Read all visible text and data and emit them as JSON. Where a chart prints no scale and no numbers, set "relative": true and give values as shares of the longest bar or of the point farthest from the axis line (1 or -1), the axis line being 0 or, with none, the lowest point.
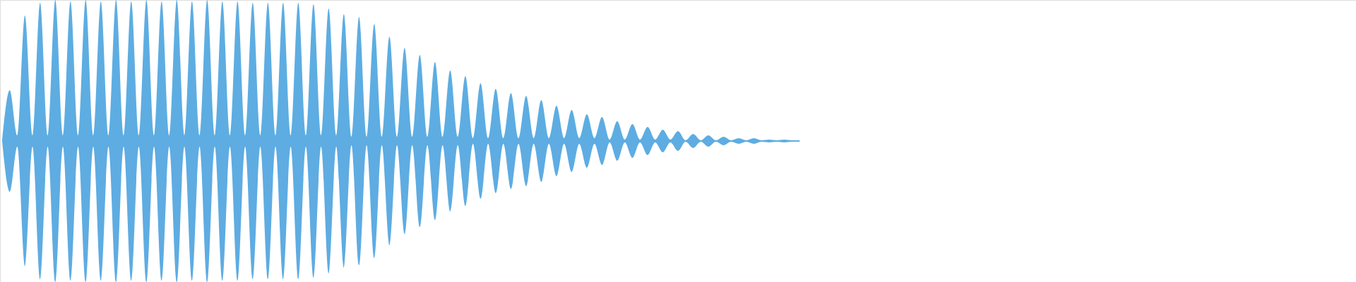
{
  "chart_data": {
    "type": "area",
    "relative": true,
    "categories": [
      null,
      null,
      null,
      null,
      null,
      null,
      null,
      null,
      null,
      null,
      null,
      null,
      null,
      null,
      null,
      null,
      null,
      null,
      null,
      null,
      null,
      null,
      null,
      null,
      null,
      null,
      null,
      null,
      null,
      null,
      null,
      null,
      null,
      null,
      null,
      null,
      null,
      null,
      null,
      null,
      null,
      null,
      null,
      null,
      null,
      null,
      null,
      null,
      null,
      null,
      null,
      null,
      null,
      null,
      null,
      null,
      null,
      null,
      null,
      null,
      null,
      null,
      null,
      null,
      null,
      null,
      null,
      null,
      null,
      null,
      null,
      null,
      null,
      null,
      null,
      null,
      null,
      null,
      null,
      null,
      null,
      null,
      null,
      null,
      null,
      null,
      null,
      null,
      null,
      null,
      null,
      null,
      null,
      null,
      null,
      null,
      null,
      null,
      null,
      null,
      null,
      null,
      null,
      null,
      null,
      null
    ],
    "series": [
      {
        "color": "#5dade2",
        "values": [
          0,
          0.36,
          0.04,
          0.89,
          0.04,
          0.98,
          0.04,
          1.0,
          0.04,
          0.99,
          0.04,
          1.0,
          0.04,
          0.99,
          0.04,
          1.0,
          0.04,
          0.99,
          0.04,
          1.0,
          0.04,
          0.99,
          0.04,
          1.0,
          0.04,
          0.99,
          0.04,
          1.0,
          0.04,
          0.99,
          0.04,
          0.99,
          0.04,
          0.98,
          0.04,
          0.98,
          0.04,
          0.98,
          0.04,
          0.98,
          0.04,
          0.97,
          0.04,
          0.94,
          0.04,
          0.9,
          0.03,
          0.88,
          0.03,
          0.83,
          0.03,
          0.74,
          0.03,
          0.66,
          0.03,
          0.61,
          0.03,
          0.56,
          0.03,
          0.5,
          0.03,
          0.46,
          0.02,
          0.41,
          0.02,
          0.37,
          0.02,
          0.34,
          0.02,
          0.32,
          0.02,
          0.29,
          0.02,
          0.25,
          0.02,
          0.22,
          0.02,
          0.19,
          0.02,
          0.17,
          0.01,
          0.14,
          0.01,
          0.12,
          0.01,
          0.1,
          0.01,
          0.08,
          0.01,
          0.07,
          0.005,
          0.05,
          0.005,
          0.04,
          0.005,
          0.03,
          0.005,
          0.02,
          0.005,
          0.02,
          0.005,
          0.01,
          0.005,
          0.01,
          0.005,
          0.005
        ]
      },
      {
        "color": "#5eace2",
        "values": [
          0,
          -0.36,
          -0.04,
          -0.89,
          -0.04,
          -0.98,
          -0.04,
          -1.0,
          -0.04,
          -0.99,
          -0.04,
          -1.0,
          -0.04,
          -0.99,
          -0.04,
          -1.0,
          -0.04,
          -0.99,
          -0.04,
          -1.0,
          -0.04,
          -0.99,
          -0.04,
          -1.0,
          -0.04,
          -0.99,
          -0.04,
          -1.0,
          -0.04,
          -0.99,
          -0.04,
          -0.99,
          -0.04,
          -0.98,
          -0.04,
          -0.98,
          -0.04,
          -0.98,
          -0.04,
          -0.98,
          -0.04,
          -0.97,
          -0.04,
          -0.94,
          -0.04,
          -0.9,
          -0.03,
          -0.88,
          -0.03,
          -0.83,
          -0.03,
          -0.74,
          -0.03,
          -0.66,
          -0.03,
          -0.61,
          -0.03,
          -0.56,
          -0.03,
          -0.5,
          -0.03,
          -0.46,
          -0.02,
          -0.41,
          -0.02,
          -0.37,
          -0.02,
          -0.34,
          -0.02,
          -0.32,
          -0.02,
          -0.29,
          -0.02,
          -0.25,
          -0.02,
          -0.22,
          -0.02,
          -0.19,
          -0.02,
          -0.17,
          -0.01,
          -0.14,
          -0.01,
          -0.12,
          -0.01,
          -0.1,
          -0.01,
          -0.08,
          -0.01,
          -0.07,
          -0.005,
          -0.05,
          -0.005,
          -0.04,
          -0.005,
          -0.03,
          -0.005,
          -0.02,
          -0.005,
          -0.02,
          -0.005,
          -0.01,
          -0.005,
          -0.01,
          -0.005,
          -0.005
        ]
      }
    ]
  }
}
